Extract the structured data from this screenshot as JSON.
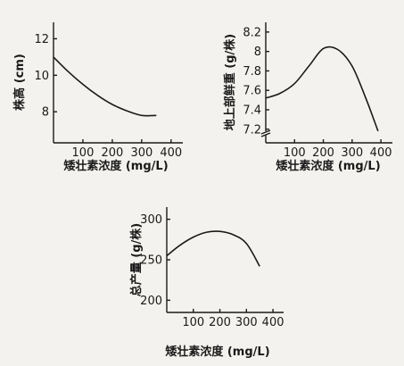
{
  "chart_data": [
    {
      "type": "line",
      "xlabel": "矮壮素浓度 (mg/L)",
      "ylabel": "株高 (cm)",
      "x_ticks": [
        100,
        200,
        300,
        400
      ],
      "y_ticks": [
        8,
        10,
        12
      ],
      "xlim": [
        0,
        440
      ],
      "ylim": [
        6.3,
        12.9
      ],
      "y_break": false,
      "series": [
        {
          "x": [
            0,
            50,
            100,
            150,
            200,
            250,
            300,
            350
          ],
          "y": [
            11.0,
            10.2,
            9.5,
            8.9,
            8.4,
            8.05,
            7.8,
            7.8
          ]
        }
      ]
    },
    {
      "type": "line",
      "xlabel": "矮壮素浓度 (mg/L)",
      "ylabel": "地上部鲜重 (g/株)",
      "x_ticks": [
        100,
        200,
        300,
        400
      ],
      "y_ticks": [
        7.2,
        7.4,
        7.6,
        7.8,
        8.0,
        8.2
      ],
      "xlim": [
        0,
        440
      ],
      "ylim": [
        7.06,
        8.3
      ],
      "y_break": true,
      "series": [
        {
          "x": [
            0,
            50,
            100,
            150,
            200,
            250,
            300,
            350,
            390
          ],
          "y": [
            7.52,
            7.57,
            7.67,
            7.85,
            8.03,
            8.02,
            7.85,
            7.5,
            7.18
          ]
        }
      ]
    },
    {
      "type": "line",
      "xlabel": "矮壮素浓度 (mg/L)",
      "ylabel": "总产量 (g/株)",
      "x_ticks": [
        100,
        200,
        300,
        400
      ],
      "y_ticks": [
        200,
        250,
        300
      ],
      "xlim": [
        0,
        440
      ],
      "ylim": [
        185,
        315
      ],
      "y_break": false,
      "series": [
        {
          "x": [
            0,
            50,
            100,
            150,
            200,
            250,
            300,
            350
          ],
          "y": [
            255,
            268,
            278,
            284,
            285,
            281,
            270,
            242
          ]
        }
      ]
    }
  ]
}
